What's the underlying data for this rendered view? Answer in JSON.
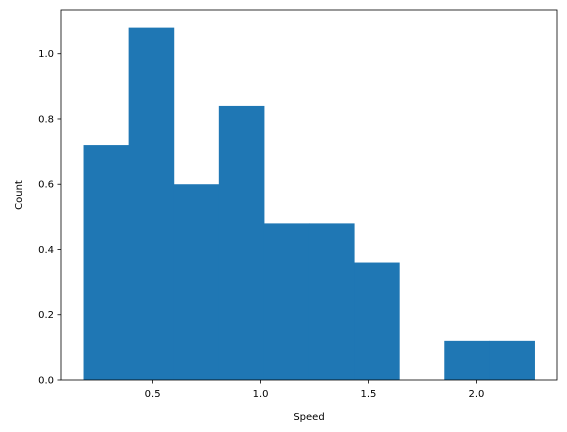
{
  "chart_data": {
    "type": "bar",
    "bin_edges": [
      0.18,
      0.3889,
      0.5978,
      0.8067,
      1.0156,
      1.2244,
      1.4333,
      1.6422,
      1.8511,
      2.06,
      2.2689
    ],
    "values": [
      0.72,
      1.08,
      0.6,
      0.84,
      0.48,
      0.48,
      0.36,
      0.0,
      0.12,
      0.12
    ],
    "xlabel": "Speed",
    "ylabel": "Count",
    "xlim": [
      0.0756,
      2.3733
    ],
    "ylim": [
      0,
      1.134
    ],
    "xticks": [
      0.5,
      1.0,
      1.5,
      2.0
    ],
    "xtick_labels": [
      "0.5",
      "1.0",
      "1.5",
      "2.0"
    ],
    "yticks": [
      0.0,
      0.2,
      0.4,
      0.6,
      0.8,
      1.0
    ],
    "ytick_labels": [
      "0.0",
      "0.2",
      "0.4",
      "0.6",
      "0.8",
      "1.0"
    ],
    "grid": false,
    "bar_color": "#1f77b4"
  }
}
